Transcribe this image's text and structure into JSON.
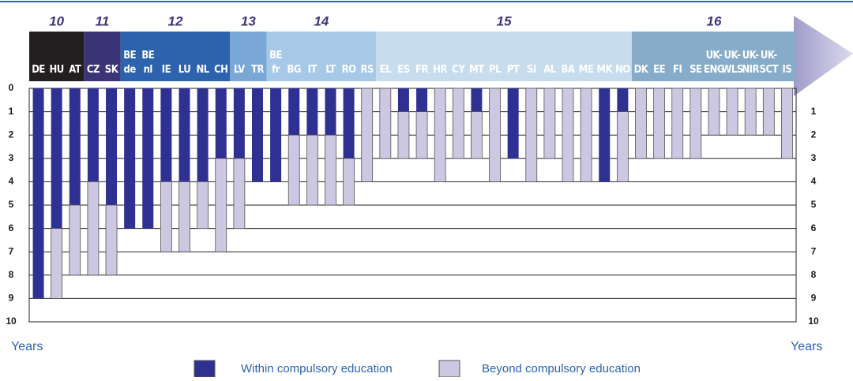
{
  "chart_data": {
    "type": "stacked_bar",
    "categories": [
      "DE",
      "HU",
      "AT",
      "CZ",
      "SK",
      "BE\nde",
      "BE\nnl",
      "IE",
      "LU",
      "NL",
      "CH",
      "LV",
      "TR",
      "BE\nfr",
      "BG",
      "IT",
      "LT",
      "RO",
      "RS",
      "EL",
      "ES",
      "FR",
      "HR",
      "CY",
      "MT",
      "PL",
      "PT",
      "SI",
      "AL",
      "BA",
      "ME",
      "MK",
      "NO",
      "DK",
      "EE",
      "FI",
      "SE",
      "UK-\nENG",
      "UK-\nWLS",
      "UK-\nNIR",
      "UK-\nSCT",
      "IS"
    ],
    "category_ages": [
      10,
      10,
      10,
      11,
      11,
      12,
      12,
      12,
      12,
      12,
      12,
      13,
      13,
      14,
      14,
      14,
      14,
      14,
      14,
      15,
      15,
      15,
      15,
      15,
      15,
      15,
      15,
      15,
      15,
      15,
      15,
      15,
      15,
      16,
      16,
      16,
      16,
      16,
      16,
      16,
      16,
      16
    ],
    "age_colors": {
      "10": "#231f20",
      "11": "#3b3578",
      "12": "#2d63ad",
      "13": "#7aa8d6",
      "14": "#a7c9e8",
      "15": "#c7dced",
      "16": "#86acc9"
    },
    "series": [
      {
        "name": "Within compulsory education",
        "color": "#2e3192",
        "values": [
          9,
          6,
          5,
          4,
          5,
          6,
          6,
          4,
          4,
          4,
          3,
          3,
          4,
          4,
          2,
          2,
          2,
          3,
          0,
          0,
          1,
          1,
          0,
          0,
          1,
          0,
          3,
          0,
          0,
          0,
          0,
          4,
          1,
          0,
          0,
          0,
          0,
          0,
          0,
          0,
          0,
          0
        ]
      },
      {
        "name": "Beyond compulsory education",
        "color": "#cdc7e2",
        "values": [
          0,
          3,
          3,
          4,
          3,
          0,
          0,
          3,
          3,
          2,
          4,
          3,
          0,
          0,
          3,
          3,
          3,
          2,
          4,
          3,
          2,
          2,
          4,
          3,
          2,
          4,
          0,
          4,
          3,
          4,
          4,
          0,
          3,
          3,
          3,
          3,
          3,
          2,
          2,
          2,
          2,
          3
        ]
      }
    ],
    "y_label": "Years",
    "ylim": [
      0,
      10
    ],
    "yticks": [
      0,
      1,
      2,
      3,
      4,
      5,
      6,
      7,
      8,
      9,
      10
    ],
    "grid": true
  }
}
